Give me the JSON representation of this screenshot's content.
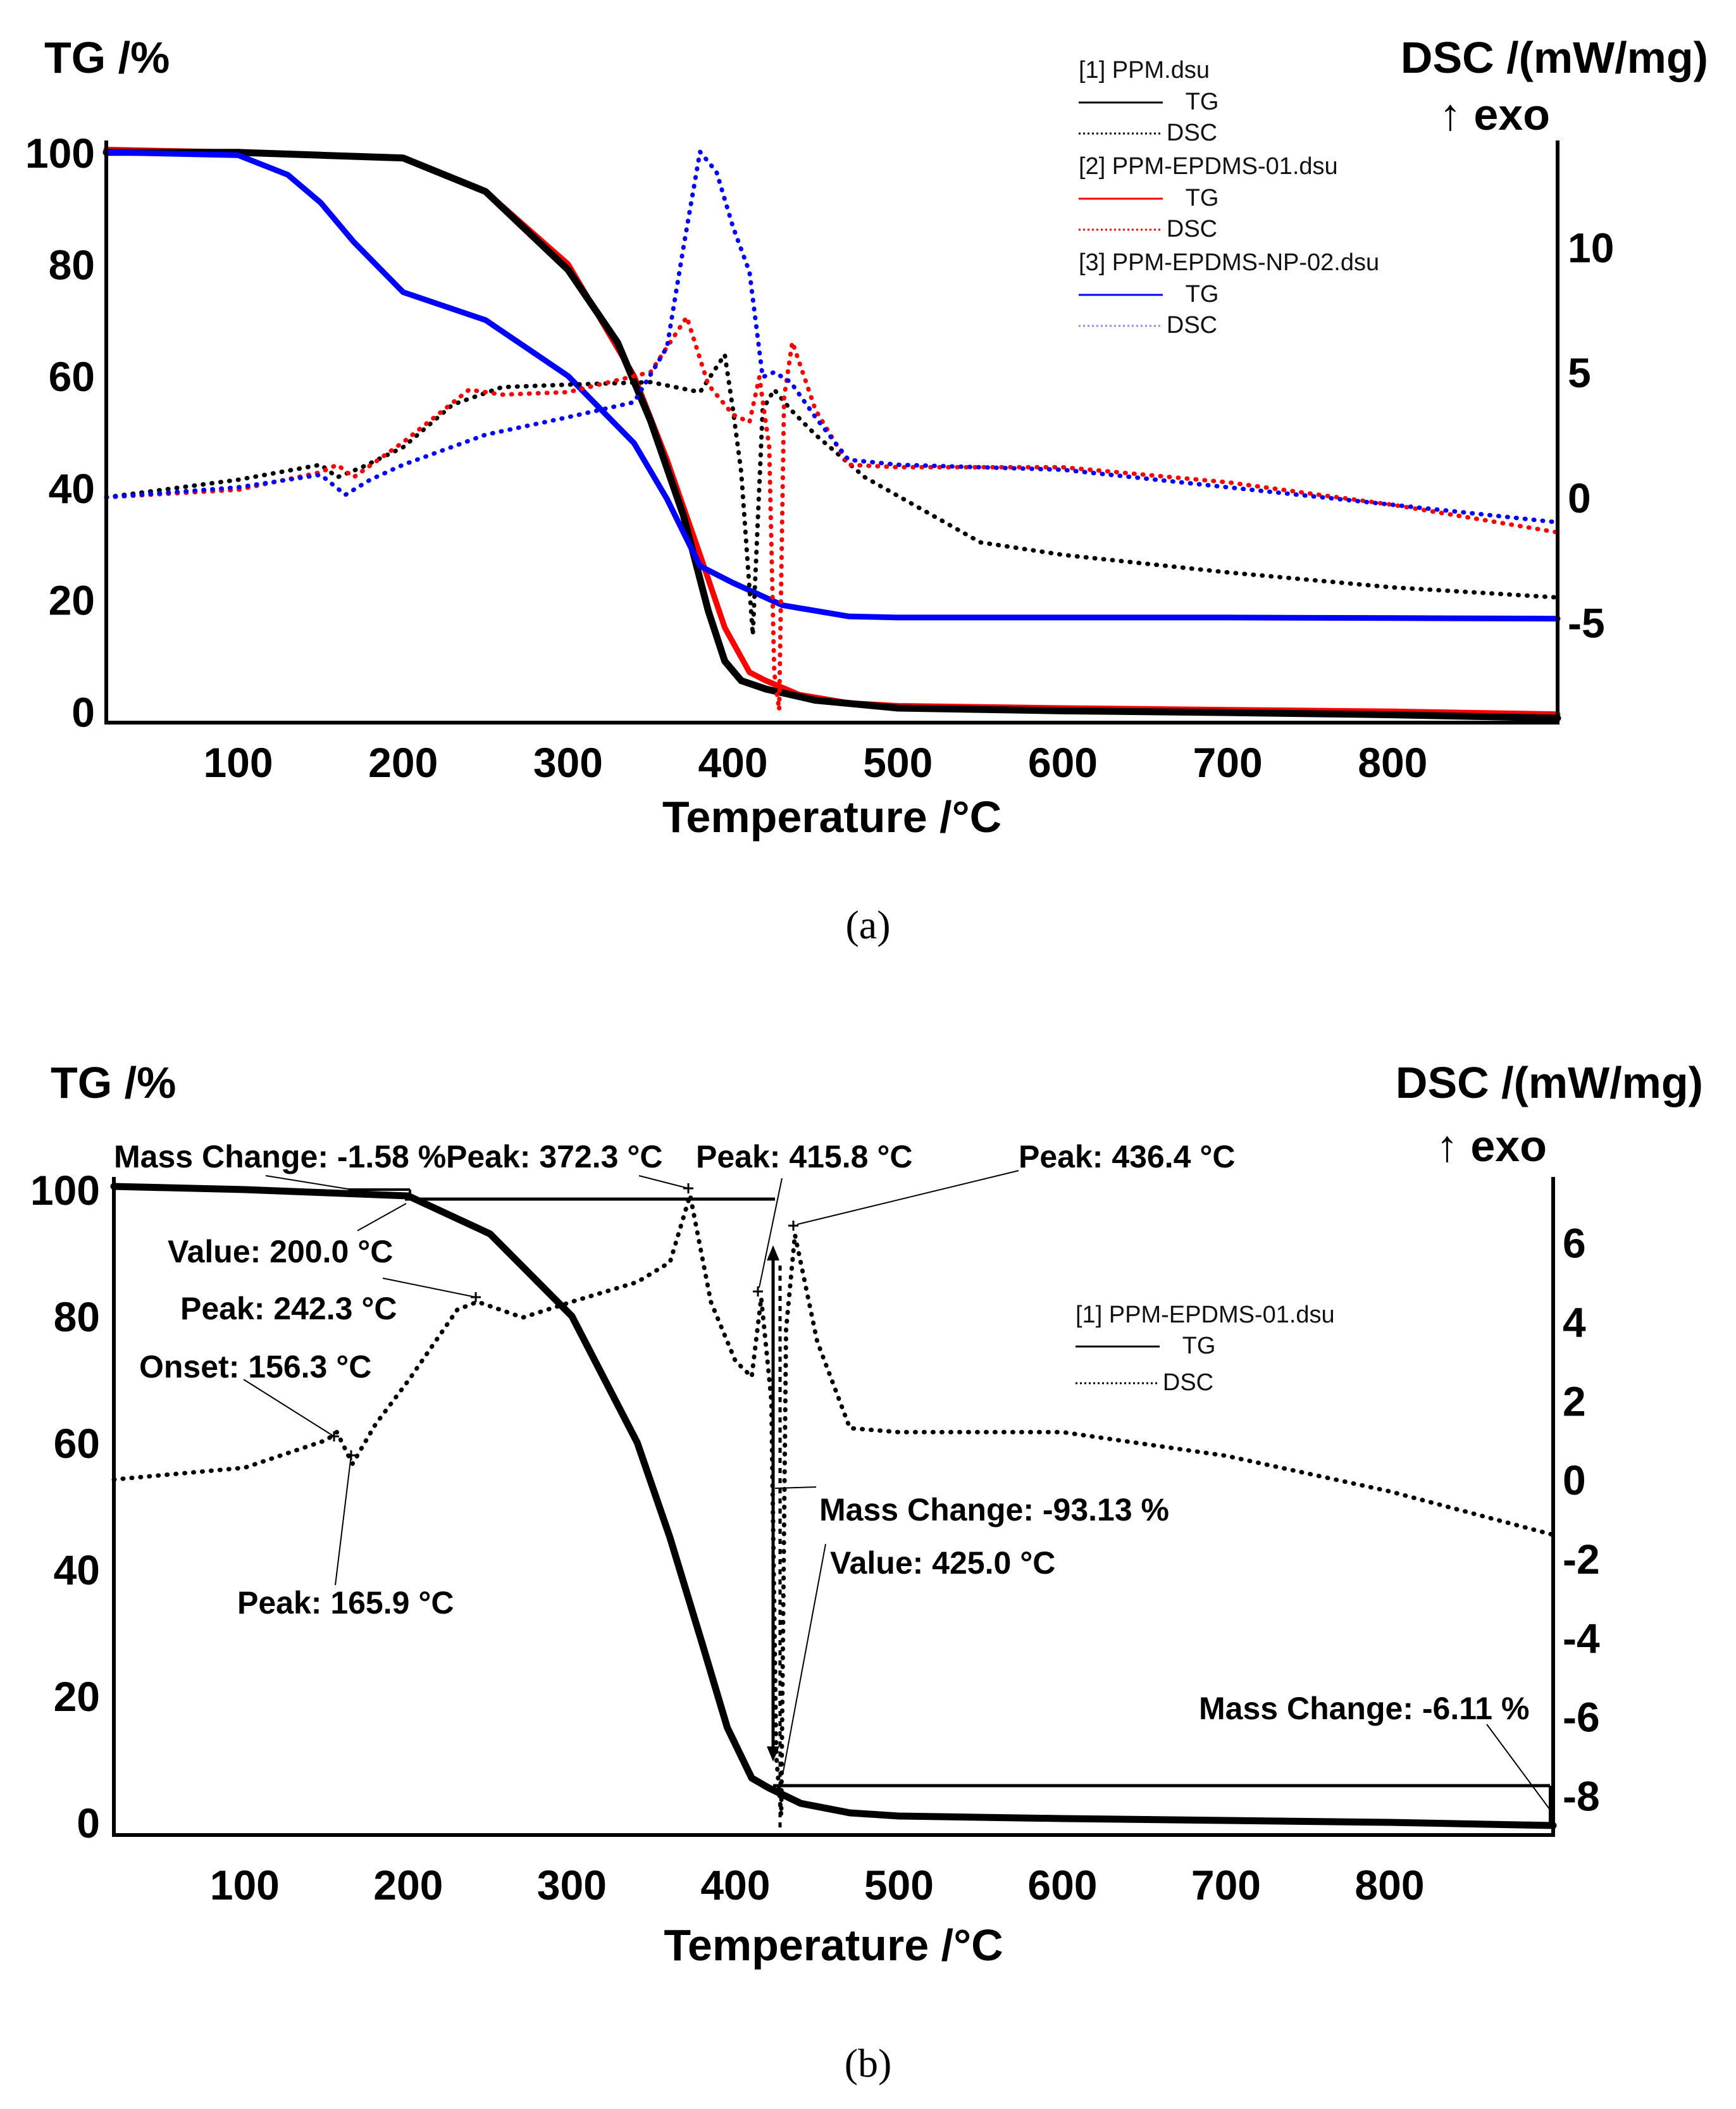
{
  "chart_data": [
    {
      "id": "a",
      "type": "line",
      "panel_label": "(a)",
      "xlabel": "Temperature /°C",
      "ylabel_left": "TG /%",
      "ylabel_right": "DSC /(mW/mg)",
      "ylabel_right_sub": "↑ exo",
      "xlim": [
        20,
        900
      ],
      "xticks": [
        100,
        200,
        300,
        400,
        500,
        600,
        700,
        800
      ],
      "ylim_left": [
        -2,
        101
      ],
      "yticks_left": [
        0,
        20,
        40,
        60,
        80,
        100
      ],
      "ylim_right": [
        -9,
        14
      ],
      "yticks_right": [
        -5,
        0,
        5,
        10
      ],
      "legend": [
        {
          "file": "[1] PPM.dsu",
          "entries": [
            {
              "label": "TG",
              "color": "#000000",
              "dash": "solid"
            },
            {
              "label": "DSC",
              "color": "#000000",
              "dash": "dot"
            }
          ]
        },
        {
          "file": "[2] PPM-EPDMS-01.dsu",
          "entries": [
            {
              "label": "TG",
              "color": "#ff0000",
              "dash": "solid"
            },
            {
              "label": "DSC",
              "color": "#ff0000",
              "dash": "dot"
            }
          ]
        },
        {
          "file": "[3] PPM-EPDMS-NP-02.dsu",
          "entries": [
            {
              "label": "TG",
              "color": "#0000ff",
              "dash": "solid"
            },
            {
              "label": "DSC",
              "color": "#0000ff",
              "dash": "dot"
            }
          ]
        }
      ],
      "series": [
        {
          "name": "[2] PPM-EPDMS-01 TG",
          "axis": "left",
          "color": "#ff0000",
          "dash": "solid",
          "width": 9,
          "x": [
            20,
            100,
            150,
            200,
            250,
            300,
            340,
            360,
            380,
            395,
            410,
            420,
            440,
            470,
            500,
            600,
            700,
            800,
            900
          ],
          "y": [
            100.5,
            100,
            99.5,
            99,
            93,
            80,
            60,
            45,
            28,
            15,
            7,
            5.5,
            3,
            1.5,
            1,
            0.6,
            0.3,
            0,
            -0.5
          ]
        },
        {
          "name": "[1] PPM TG",
          "axis": "left",
          "color": "#000000",
          "dash": "solid",
          "width": 11,
          "x": [
            20,
            100,
            150,
            200,
            250,
            300,
            330,
            350,
            370,
            385,
            395,
            405,
            420,
            450,
            500,
            600,
            700,
            800,
            900
          ],
          "y": [
            100,
            100,
            99.5,
            99,
            93,
            79,
            66,
            52,
            35,
            18,
            9,
            5.5,
            4,
            2,
            0.6,
            0.1,
            -0.2,
            -0.6,
            -1.2
          ]
        },
        {
          "name": "[3] PPM-EPDMS-NP-02 TG",
          "axis": "left",
          "color": "#0000ff",
          "dash": "solid",
          "width": 9,
          "x": [
            20,
            100,
            130,
            150,
            170,
            200,
            250,
            300,
            340,
            360,
            380,
            400,
            430,
            470,
            500,
            600,
            700,
            800,
            900
          ],
          "y": [
            100,
            99.5,
            96,
            91,
            84,
            75,
            70,
            60,
            48,
            38,
            26,
            23,
            19,
            17,
            16.8,
            16.8,
            16.8,
            16.7,
            16.6
          ]
        },
        {
          "name": "[1] PPM DSC",
          "axis": "right",
          "color": "#000000",
          "dash": "dot",
          "width": 7,
          "x": [
            20,
            100,
            150,
            160,
            175,
            200,
            230,
            260,
            300,
            350,
            380,
            395,
            400,
            405,
            412,
            418,
            425,
            435,
            450,
            480,
            550,
            600,
            700,
            800,
            900
          ],
          "y": [
            0,
            0.7,
            1.3,
            0.8,
            1.2,
            2.0,
            3.7,
            4.4,
            4.5,
            4.6,
            4.2,
            5.7,
            3.5,
            1.0,
            -5.5,
            3.5,
            4.3,
            3.5,
            2.5,
            0.8,
            -1.8,
            -2.3,
            -3.0,
            -3.6,
            -4.0
          ]
        },
        {
          "name": "[2] PPM-EPDMS-01 DSC",
          "axis": "right",
          "color": "#ff0000",
          "dash": "dot",
          "width": 7,
          "x": [
            20,
            100,
            150,
            160,
            170,
            200,
            240,
            260,
            300,
            350,
            372,
            385,
            400,
            410,
            416,
            422,
            425,
            428,
            431,
            436,
            450,
            470,
            500,
            600,
            700,
            800,
            900
          ],
          "y": [
            0,
            0.3,
            1.0,
            1.3,
            0.8,
            2.2,
            4.3,
            4.1,
            4.2,
            5.0,
            7.2,
            4.5,
            3.3,
            3.0,
            4.8,
            2.0,
            -7.0,
            -8.5,
            4.0,
            6.2,
            3.5,
            1.3,
            1.2,
            1.2,
            0.6,
            -0.3,
            -1.4
          ]
        },
        {
          "name": "[3] PPM-EPDMS-NP-02 DSC",
          "axis": "right",
          "color": "#0000ff",
          "dash": "dot",
          "width": 7,
          "x": [
            20,
            100,
            150,
            165,
            180,
            200,
            250,
            300,
            340,
            360,
            370,
            380,
            390,
            400,
            410,
            418,
            425,
            435,
            450,
            470,
            500,
            600,
            700,
            800,
            900
          ],
          "y": [
            0,
            0.4,
            0.9,
            0.1,
            0.7,
            1.3,
            2.5,
            3.2,
            3.8,
            6.0,
            10.0,
            13.8,
            13.0,
            10.8,
            9.0,
            4.8,
            5.0,
            4.6,
            3.2,
            1.5,
            1.3,
            1.1,
            0.4,
            -0.3,
            -1.0
          ]
        }
      ]
    },
    {
      "id": "b",
      "type": "line",
      "panel_label": "(b)",
      "xlabel": "Temperature /°C",
      "ylabel_left": "TG /%",
      "ylabel_right": "DSC /(mW/mg)",
      "ylabel_right_sub": "↑ exo",
      "xlim": [
        20,
        900
      ],
      "xticks": [
        100,
        200,
        300,
        400,
        500,
        600,
        700,
        800
      ],
      "ylim_left": [
        -2,
        101
      ],
      "yticks_left": [
        0,
        20,
        40,
        60,
        80,
        100
      ],
      "ylim_right": [
        -9,
        7.5
      ],
      "yticks_right": [
        -8,
        -6,
        -4,
        -2,
        0,
        2,
        4,
        6
      ],
      "legend": [
        {
          "file": "[1] PPM-EPDMS-01.dsu",
          "entries": [
            {
              "label": "TG",
              "color": "#000000",
              "dash": "solid"
            },
            {
              "label": "DSC",
              "color": "#000000",
              "dash": "dot"
            }
          ]
        }
      ],
      "series": [
        {
          "name": "[1] PPM-EPDMS-01 TG",
          "axis": "left",
          "color": "#000000",
          "dash": "solid",
          "width": 11,
          "x": [
            20,
            100,
            150,
            200,
            250,
            300,
            340,
            360,
            380,
            395,
            410,
            420,
            440,
            470,
            500,
            600,
            700,
            800,
            900
          ],
          "y": [
            100.5,
            100,
            99.5,
            99,
            93,
            80,
            60,
            45,
            28,
            15,
            7,
            5.5,
            3,
            1.5,
            1,
            0.6,
            0.3,
            0,
            -0.5
          ]
        },
        {
          "name": "[1] PPM-EPDMS-01 DSC",
          "axis": "right",
          "color": "#000000",
          "dash": "dot",
          "width": 7,
          "x": [
            20,
            100,
            150,
            156.3,
            165.9,
            180,
            200,
            230,
            242.3,
            270,
            300,
            340,
            360,
            372.3,
            385,
            400,
            410,
            415.8,
            422,
            425,
            428,
            431,
            436.4,
            450,
            470,
            500,
            600,
            700,
            800,
            900
          ],
          "y": [
            0,
            0.3,
            1.0,
            1.2,
            0.4,
            1.4,
            2.5,
            4.3,
            4.5,
            4.1,
            4.5,
            5.0,
            5.5,
            7.2,
            4.5,
            3.0,
            2.6,
            4.6,
            2.0,
            -7.0,
            -8.5,
            3.8,
            6.2,
            3.5,
            1.3,
            1.2,
            1.2,
            0.6,
            -0.3,
            -1.4
          ]
        }
      ],
      "annotations": [
        {
          "text": "Mass Change: -1.58 %"
        },
        {
          "text": "Peak: 372.3 °C"
        },
        {
          "text": "Peak: 415.8 °C"
        },
        {
          "text": "Peak: 436.4 °C"
        },
        {
          "text": "Value: 200.0 °C"
        },
        {
          "text": "Peak: 242.3 °C"
        },
        {
          "text": "Onset: 156.3 °C"
        },
        {
          "text": "Peak: 165.9 °C"
        },
        {
          "text": "Mass Change: -93.13 %"
        },
        {
          "text": "Value: 425.0 °C"
        },
        {
          "text": "Mass Change: -6.11 %"
        }
      ]
    }
  ]
}
